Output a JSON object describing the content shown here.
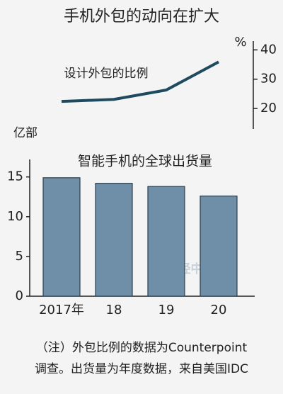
{
  "chart_data": {
    "type": "bar",
    "title": "手机外包的动向在扩大",
    "categories": [
      "2017年",
      "18",
      "19",
      "20"
    ],
    "series": [
      {
        "name": "智能手机的全球出货量",
        "type": "bar",
        "color": "#6f8ea8",
        "values": [
          14.9,
          14.2,
          13.8,
          12.6
        ]
      },
      {
        "name": "设计外包的比例",
        "type": "line",
        "axis": "y2",
        "color": "#1d4a5e",
        "values": [
          22.4,
          23.1,
          26.3,
          35.9
        ]
      }
    ],
    "y_label": "亿部",
    "ylim": [
      0,
      17.2
    ],
    "yticks": [
      0,
      5,
      10,
      15
    ],
    "y2_label": "%",
    "y2lim": [
      13,
      43
    ],
    "y2ticks": [
      20,
      30,
      40
    ],
    "watermark": "日经中文网",
    "note": [
      "（注）外包比例的数据为Counterpoint",
      "调查。出货量为年度数据，来自美国IDC"
    ]
  }
}
